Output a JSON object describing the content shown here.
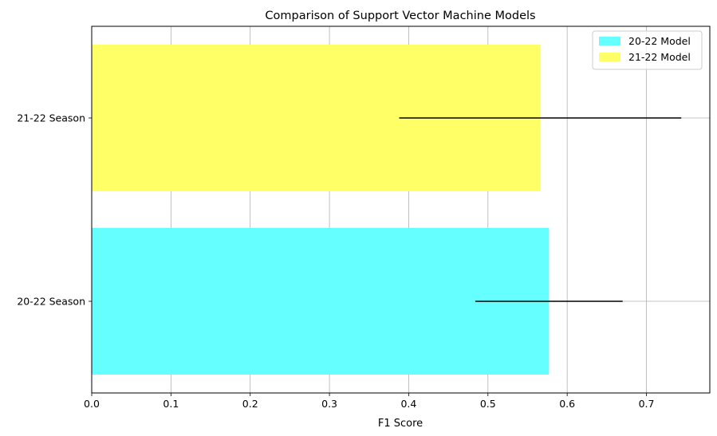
{
  "chart_data": {
    "type": "bar",
    "orientation": "horizontal",
    "title": "Comparison of Support Vector Machine Models",
    "xlabel": "F1 Score",
    "ylabel": "",
    "xlim": [
      0.0,
      0.78
    ],
    "xticks": [
      0.0,
      0.1,
      0.2,
      0.3,
      0.4,
      0.5,
      0.6,
      0.7
    ],
    "xtick_labels": [
      "0.0",
      "0.1",
      "0.2",
      "0.3",
      "0.4",
      "0.5",
      "0.6",
      "0.7"
    ],
    "grid": true,
    "legend_position": "top-right",
    "categories": [
      "20-22 Season",
      "21-22 Season"
    ],
    "series": [
      {
        "name": "20-22 Model",
        "color": "#66ffff",
        "category": "20-22 Season",
        "value": 0.577,
        "error": 0.093
      },
      {
        "name": "21-22 Model",
        "color": "#ffff66",
        "category": "21-22 Season",
        "value": 0.566,
        "error": 0.178
      }
    ],
    "errorbar_color": "#000000"
  }
}
